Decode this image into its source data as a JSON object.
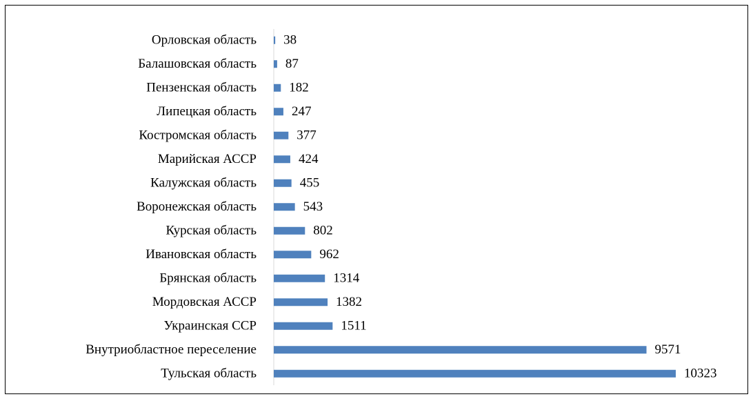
{
  "chart_data": {
    "type": "bar",
    "orientation": "horizontal",
    "categories": [
      "Орловская область",
      "Балашовская область",
      "Пензенская область",
      "Липецкая область",
      "Костромская область",
      "Марийская АССР",
      "Калужская область",
      "Воронежская область",
      "Курская область",
      "Ивановская область",
      "Брянская область",
      "Мордовская АССР",
      "Украинская ССР",
      "Внутриобластное переселение",
      "Тульская область"
    ],
    "values": [
      38,
      87,
      182,
      247,
      377,
      424,
      455,
      543,
      802,
      962,
      1314,
      1382,
      1511,
      9571,
      10323
    ],
    "color": "#4f81bd"
  }
}
